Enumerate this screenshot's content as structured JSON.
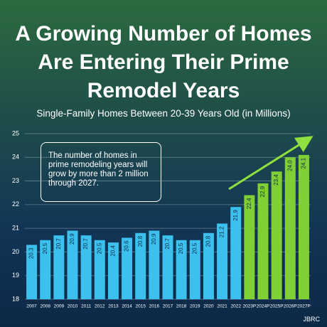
{
  "chart_data": {
    "type": "bar",
    "title": "A Growing Number of Homes Are Entering Their Prime Remodel Years",
    "subtitle": "Single-Family Homes Between 20-39 Years Old (in Millions)",
    "annotation": "The number of homes in prime remodeling years will grow by more than 2 million through 2027.",
    "source": "JBRC",
    "categories": [
      "2007",
      "2008",
      "2009",
      "2010",
      "2011",
      "2012",
      "2013",
      "2014",
      "2015",
      "2016",
      "2017",
      "2018",
      "2019",
      "2020",
      "2021",
      "2022",
      "2023P",
      "2024P",
      "2025P",
      "2026P",
      "2027P"
    ],
    "values": [
      20.3,
      20.5,
      20.7,
      20.9,
      20.7,
      20.5,
      20.4,
      20.6,
      20.8,
      20.9,
      20.7,
      20.5,
      20.5,
      20.8,
      21.2,
      21.9,
      22.4,
      22.9,
      23.4,
      24.0,
      24.1
    ],
    "value_labels": [
      "20.3",
      "20.5",
      "20.7",
      "20.9",
      "20.7",
      "20.5",
      "20.4",
      "20.6",
      "20.8",
      "20.9",
      "20.7",
      "20.5",
      "20.5",
      "20.8",
      "21.2",
      "21.9",
      "22.4",
      "22.9",
      "23.4",
      "24.0",
      "24.1"
    ],
    "colors": [
      "#3cc0ee",
      "#3cc0ee",
      "#3cc0ee",
      "#3cc0ee",
      "#3cc0ee",
      "#3cc0ee",
      "#3cc0ee",
      "#3cc0ee",
      "#3cc0ee",
      "#3cc0ee",
      "#3cc0ee",
      "#3cc0ee",
      "#3cc0ee",
      "#3cc0ee",
      "#3cc0ee",
      "#3cc0ee",
      "#7fcf35",
      "#7fcf35",
      "#7fcf35",
      "#7fcf35",
      "#7fcf35"
    ],
    "ylim": [
      18,
      25
    ],
    "yticks": [
      18,
      19,
      20,
      21,
      22,
      23,
      24,
      25
    ],
    "grid": true
  }
}
